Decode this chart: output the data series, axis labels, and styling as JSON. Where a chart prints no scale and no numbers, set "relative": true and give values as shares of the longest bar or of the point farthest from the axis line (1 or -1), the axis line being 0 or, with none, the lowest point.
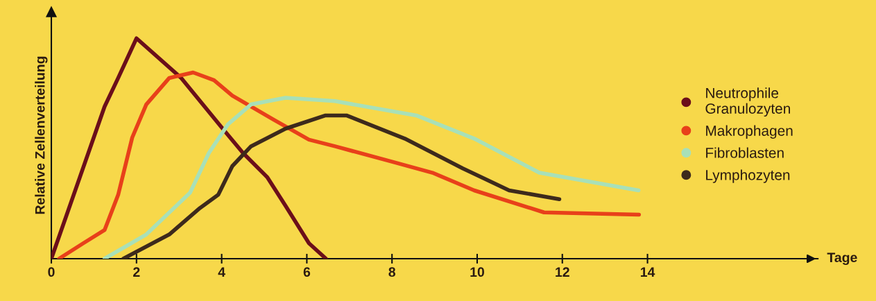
{
  "chart_data": {
    "type": "line",
    "relative": true,
    "ylabel": "Relative Zellenverteilung",
    "xlabel": "Tage",
    "xlim": [
      0,
      18
    ],
    "xticks": [
      0,
      2,
      4,
      6,
      8,
      10,
      12,
      14
    ],
    "grid": false,
    "legend": "right",
    "tick_labels": "x",
    "series": [
      {
        "name": "Neutrophile\nGranulozyten",
        "color": "#6b0f1a",
        "x": [
          0,
          1.25,
          1.57,
          2.0,
          3.05,
          3.98,
          4.5,
          5.07,
          5.5,
          6.05,
          6.45
        ],
        "values": [
          0,
          0.69,
          0.82,
          1.0,
          0.82,
          0.6,
          0.48,
          0.37,
          0.24,
          0.07,
          0
        ]
      },
      {
        "name": "Makrophagen",
        "color": "#e8401a",
        "x": [
          0.18,
          0.75,
          1.25,
          1.57,
          1.9,
          2.23,
          2.77,
          3.33,
          3.82,
          4.25,
          5.23,
          6.05,
          6.66,
          8.0,
          8.95,
          9.93,
          11.57,
          13.8
        ],
        "values": [
          0,
          0.07,
          0.13,
          0.29,
          0.55,
          0.7,
          0.82,
          0.845,
          0.81,
          0.74,
          0.63,
          0.54,
          0.51,
          0.44,
          0.39,
          0.31,
          0.21,
          0.2
        ]
      },
      {
        "name": "Fibroblasten",
        "color": "#a8e0b8",
        "x": [
          1.25,
          2.23,
          3.26,
          3.7,
          4.15,
          4.69,
          5.5,
          6.66,
          8.57,
          9.93,
          11.46,
          13.79
        ],
        "values": [
          0,
          0.11,
          0.3,
          0.48,
          0.61,
          0.7,
          0.73,
          0.715,
          0.65,
          0.545,
          0.39,
          0.31
        ]
      },
      {
        "name": "Lymphozyten",
        "color": "#3d2a1c",
        "x": [
          1.69,
          2.77,
          3.49,
          3.92,
          4.25,
          4.69,
          5.5,
          6.44,
          6.93,
          8.3,
          9.66,
          10.75,
          11.93
        ],
        "values": [
          0,
          0.11,
          0.23,
          0.29,
          0.42,
          0.51,
          0.59,
          0.65,
          0.65,
          0.545,
          0.41,
          0.31,
          0.27
        ]
      }
    ]
  }
}
